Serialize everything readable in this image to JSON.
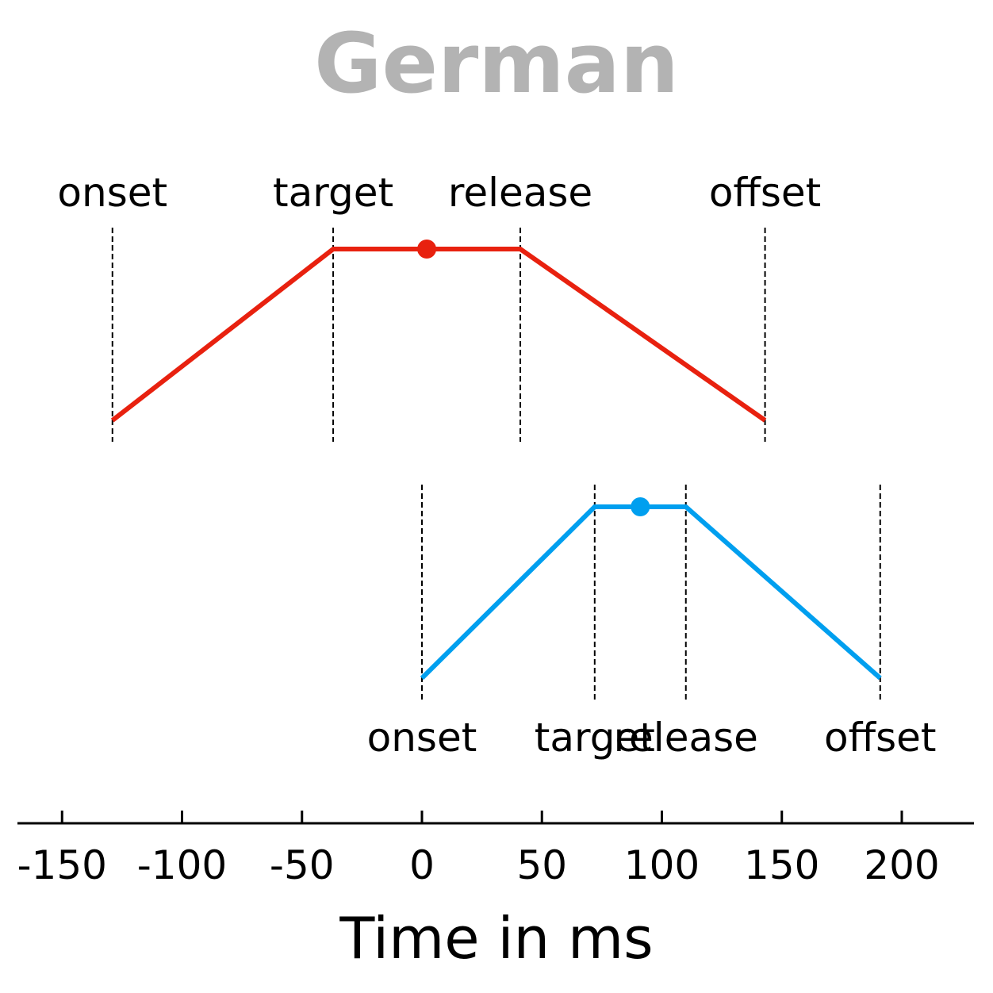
{
  "chart_data": {
    "type": "line",
    "title": "German",
    "title_color": "#b3b3b3",
    "xlabel": "Time in ms",
    "ylabel": "",
    "xlim": [
      -168,
      232
    ],
    "xticks": [
      -150,
      -100,
      -50,
      0,
      50,
      100,
      150,
      200
    ],
    "xtick_labels": [
      "-150",
      "-100",
      "-50",
      "0",
      "50",
      "100",
      "150",
      "200"
    ],
    "grid": false,
    "series": [
      {
        "color": "#e8210f",
        "landmarks": [
          {
            "label": "onset",
            "x": -129
          },
          {
            "label": "target",
            "x": -37
          },
          {
            "label": "release",
            "x": 41
          },
          {
            "label": "offset",
            "x": 143
          }
        ],
        "midpoint": 2,
        "label_position": "above"
      },
      {
        "color": "#009fef",
        "landmarks": [
          {
            "label": "onset",
            "x": 0
          },
          {
            "label": "target",
            "x": 72
          },
          {
            "label": "release",
            "x": 110
          },
          {
            "label": "offset",
            "x": 191
          }
        ],
        "midpoint": 91,
        "label_position": "below"
      }
    ]
  }
}
